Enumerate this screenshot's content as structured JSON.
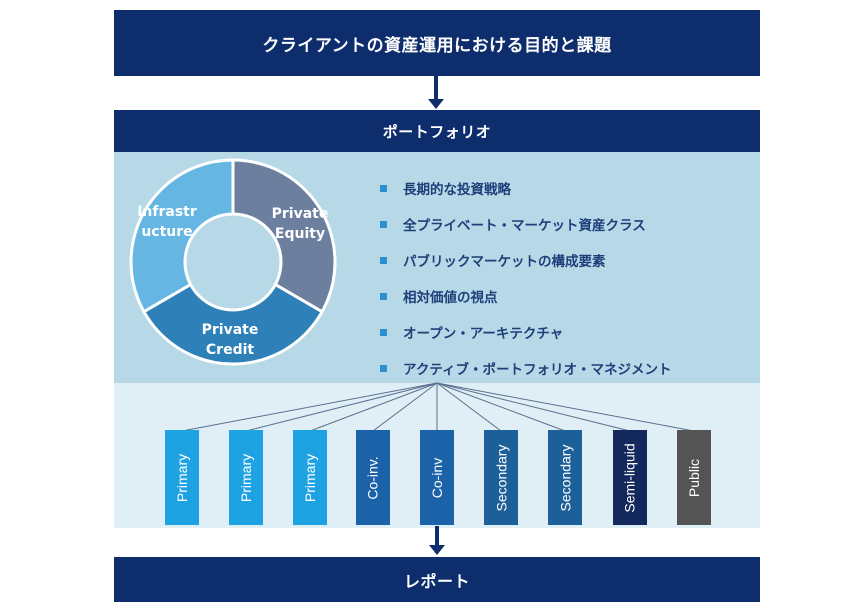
{
  "top_band": {
    "title": "クライアントの資産運用における目的と課題"
  },
  "portfolio_band": {
    "title": "ポートフォリオ"
  },
  "report_band": {
    "title": "レポート"
  },
  "donut": {
    "segments": [
      {
        "label_line1": "Private",
        "label_line2": "Equity",
        "color": "#6d7f9e"
      },
      {
        "label_line1": "Private",
        "label_line2": "Credit",
        "color": "#2d80b8"
      },
      {
        "label_line1": "Infrastr",
        "label_line2": "ucture",
        "color": "#66b6e3"
      }
    ]
  },
  "features": [
    {
      "text": "長期的な投資戦略"
    },
    {
      "text": "全プライベート・マーケット資産クラス"
    },
    {
      "text": "パブリックマーケットの構成要素"
    },
    {
      "text": "相対価値の視点"
    },
    {
      "text": "オープン・アーキテクチャ"
    },
    {
      "text": "アクティブ・ポートフォリオ・マネジメント"
    }
  ],
  "strategies": [
    {
      "label": "Primary",
      "color": "#1ea2e2"
    },
    {
      "label": "Primary",
      "color": "#1ea2e2"
    },
    {
      "label": "Primary",
      "color": "#1ea2e2"
    },
    {
      "label": "Co-inv.",
      "color": "#1b62a8"
    },
    {
      "label": "Co-inv",
      "color": "#1b62a8"
    },
    {
      "label": "Secondary",
      "color": "#1d5f99"
    },
    {
      "label": "Secondary",
      "color": "#1d5f99"
    },
    {
      "label": "Semi-liquid",
      "color": "#13285c"
    },
    {
      "label": "Public",
      "color": "#545454"
    }
  ]
}
